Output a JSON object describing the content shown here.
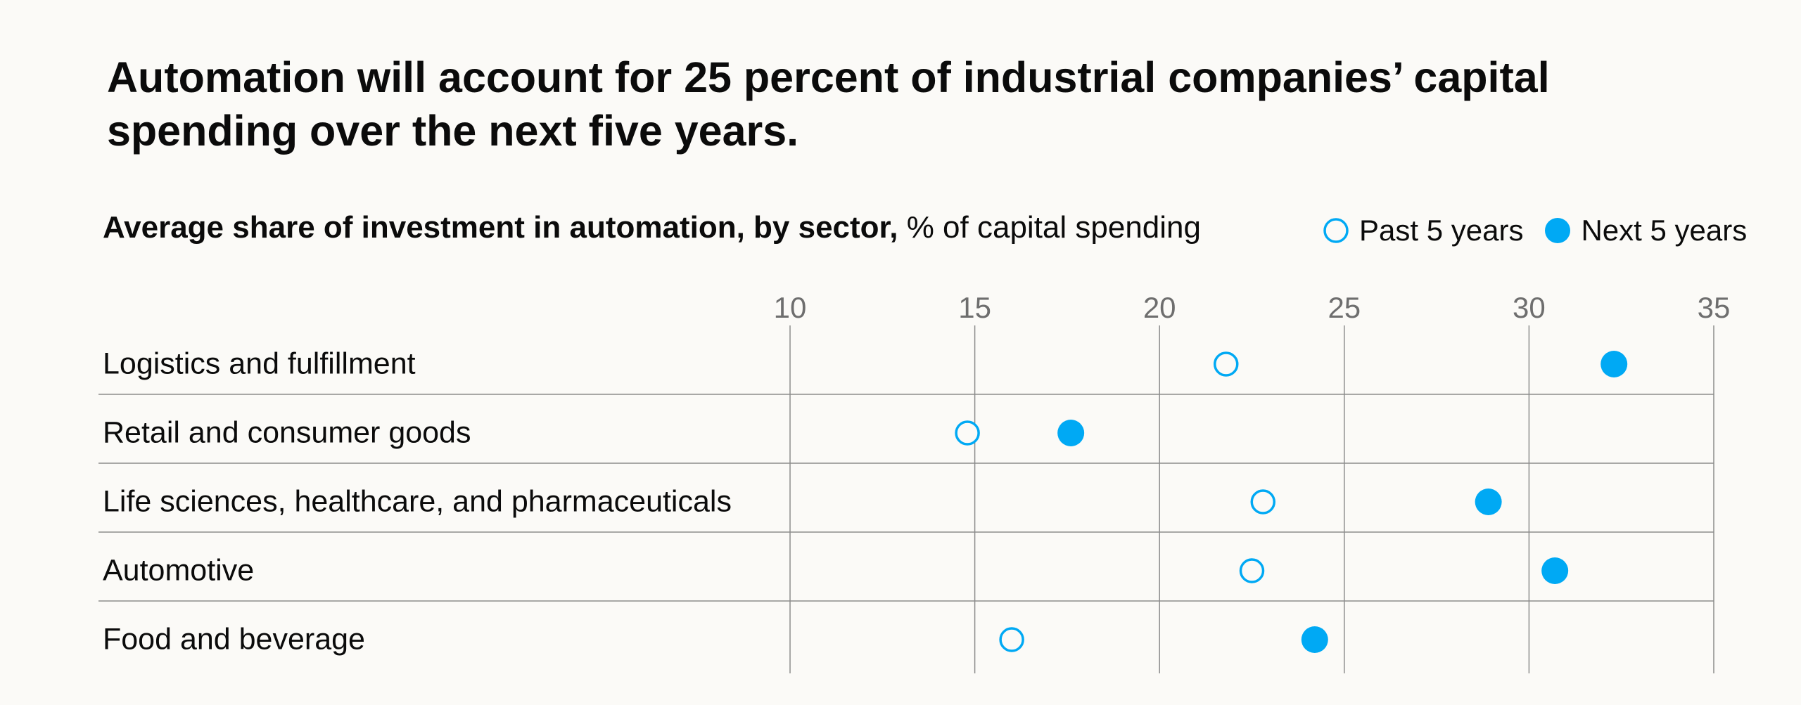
{
  "title": "Automation will account for 25 percent of industrial companies’ capital spending over the next five years.",
  "subtitle_bold": "Average share of investment in automation, by sector,",
  "subtitle_rest": "% of capital spending",
  "legend": {
    "past": "Past 5 years",
    "next": "Next 5 years"
  },
  "colors": {
    "accent": "#00a9f4",
    "grid": "#8c8c8c",
    "tick": "#6e6e6e"
  },
  "chart_data": {
    "type": "scatter",
    "x_ticks": [
      10,
      15,
      20,
      25,
      30,
      35
    ],
    "xlim": [
      10,
      35
    ],
    "categories": [
      "Logistics and fulfillment",
      "Retail and consumer goods",
      "Life sciences, healthcare, and pharmaceuticals",
      "Automotive",
      "Food and beverage"
    ],
    "series": [
      {
        "name": "Past 5 years",
        "style": "hollow",
        "values": [
          21.8,
          14.8,
          22.8,
          22.5,
          16.0
        ]
      },
      {
        "name": "Next 5 years",
        "style": "filled",
        "values": [
          32.3,
          17.6,
          28.9,
          30.7,
          24.2
        ]
      }
    ],
    "grid": true,
    "legend_position": "top-right"
  }
}
